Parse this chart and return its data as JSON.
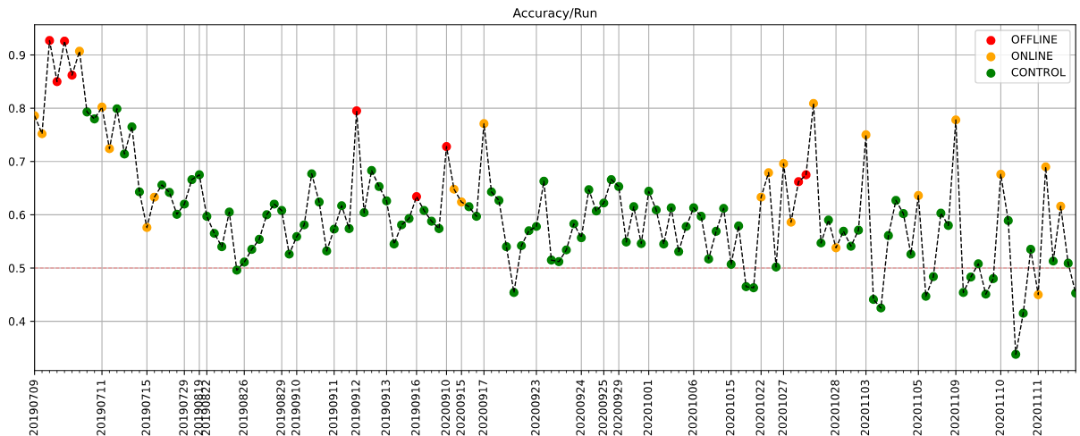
{
  "chart_data": {
    "type": "scatter",
    "title": "Accuracy/Run",
    "ylim": [
      0.3075,
      0.9565
    ],
    "yticks": [
      0.4,
      0.5,
      0.6,
      0.7,
      0.8,
      0.9
    ],
    "categories": [
      "20190709",
      null,
      null,
      null,
      null,
      null,
      null,
      null,
      null,
      "20190711",
      null,
      null,
      null,
      null,
      null,
      "20190715",
      null,
      null,
      null,
      null,
      "20190729",
      null,
      "20190819",
      "20190822",
      null,
      null,
      null,
      null,
      "20190826",
      null,
      null,
      null,
      null,
      "20190829",
      null,
      "20190910",
      null,
      null,
      null,
      null,
      "20190911",
      null,
      null,
      "20190912",
      null,
      null,
      null,
      "20190913",
      null,
      null,
      null,
      "20190916",
      null,
      null,
      null,
      "20200910",
      null,
      "20200915",
      null,
      null,
      "20200917",
      null,
      null,
      null,
      null,
      null,
      null,
      "20200923",
      null,
      null,
      null,
      null,
      null,
      "20200924",
      null,
      null,
      "20200925",
      null,
      "20200929",
      null,
      null,
      null,
      "20201001",
      null,
      null,
      null,
      null,
      null,
      "20201006",
      null,
      null,
      null,
      null,
      "20201015",
      null,
      null,
      null,
      "20201022",
      null,
      null,
      "20201027",
      null,
      null,
      null,
      null,
      null,
      null,
      "20201028",
      null,
      null,
      null,
      "20201103",
      null,
      null,
      null,
      null,
      null,
      null,
      "20201105",
      null,
      null,
      null,
      null,
      "20201109",
      null,
      null,
      null,
      null,
      null,
      "20201110",
      null,
      null,
      null,
      null,
      "20201111",
      null,
      null,
      null,
      null,
      null
    ],
    "grid": true,
    "legend": "top right",
    "ref_lines": [
      {
        "axis": "y",
        "value": 0.5,
        "color": "#f08080",
        "line_style": "dashed"
      }
    ],
    "series": [
      {
        "name": "OFFLINE",
        "color": "#ff0000",
        "values": [
          null,
          null,
          0.927,
          0.85,
          0.926,
          0.862,
          null,
          null,
          null,
          null,
          null,
          null,
          null,
          null,
          null,
          null,
          null,
          null,
          null,
          null,
          null,
          null,
          null,
          null,
          null,
          null,
          null,
          null,
          null,
          null,
          null,
          null,
          null,
          null,
          null,
          null,
          null,
          null,
          null,
          null,
          null,
          null,
          null,
          0.795,
          null,
          null,
          null,
          null,
          null,
          null,
          null,
          0.634,
          null,
          null,
          null,
          0.728,
          null,
          null,
          null,
          null,
          null,
          null,
          null,
          null,
          null,
          null,
          null,
          null,
          null,
          null,
          null,
          null,
          null,
          null,
          null,
          null,
          null,
          null,
          null,
          null,
          null,
          null,
          null,
          null,
          null,
          null,
          null,
          null,
          null,
          null,
          null,
          null,
          null,
          null,
          null,
          null,
          null,
          null,
          null,
          null,
          null,
          null,
          0.662,
          0.675,
          null,
          null,
          null,
          null,
          null,
          null,
          null,
          null,
          null,
          null,
          null,
          null,
          null,
          null,
          null,
          null,
          null,
          null,
          null,
          null,
          null,
          null,
          null,
          null,
          null,
          null,
          null,
          null,
          null,
          null,
          null,
          null,
          null,
          null,
          null,
          null
        ]
      },
      {
        "name": "ONLINE",
        "color": "#ffa500",
        "values": [
          0.786,
          0.752,
          null,
          null,
          null,
          null,
          0.907,
          null,
          null,
          0.802,
          0.724,
          null,
          null,
          null,
          null,
          0.576,
          0.633,
          null,
          null,
          null,
          null,
          null,
          null,
          null,
          null,
          null,
          null,
          null,
          null,
          null,
          null,
          null,
          null,
          null,
          null,
          null,
          null,
          null,
          null,
          null,
          null,
          null,
          null,
          null,
          null,
          null,
          null,
          null,
          null,
          null,
          null,
          null,
          null,
          null,
          null,
          null,
          0.648,
          0.624,
          null,
          null,
          0.771,
          null,
          null,
          null,
          null,
          null,
          null,
          null,
          null,
          null,
          null,
          null,
          null,
          null,
          null,
          null,
          null,
          null,
          null,
          null,
          null,
          null,
          null,
          null,
          null,
          null,
          null,
          null,
          null,
          null,
          null,
          null,
          null,
          null,
          null,
          null,
          null,
          0.633,
          0.679,
          null,
          0.696,
          0.586,
          null,
          null,
          0.809,
          null,
          null,
          0.538,
          null,
          null,
          null,
          0.75,
          null,
          null,
          null,
          null,
          null,
          null,
          0.636,
          null,
          null,
          null,
          null,
          0.778,
          null,
          null,
          null,
          null,
          null,
          0.676,
          null,
          null,
          null,
          null,
          0.45,
          0.69,
          null,
          0.616,
          null,
          null
        ]
      },
      {
        "name": "CONTROL",
        "color": "#008000",
        "values": [
          null,
          null,
          null,
          null,
          null,
          null,
          null,
          0.793,
          0.78,
          null,
          null,
          0.799,
          0.714,
          0.765,
          0.643,
          null,
          null,
          0.656,
          0.642,
          0.601,
          0.62,
          0.666,
          0.675,
          0.597,
          0.565,
          0.54,
          0.605,
          0.496,
          0.511,
          0.535,
          0.554,
          0.6,
          0.62,
          0.608,
          0.526,
          0.559,
          0.581,
          0.677,
          0.624,
          0.532,
          0.573,
          0.617,
          0.574,
          null,
          0.604,
          0.683,
          0.653,
          0.626,
          0.545,
          0.581,
          0.593,
          null,
          0.608,
          0.588,
          0.574,
          null,
          null,
          null,
          0.615,
          0.597,
          null,
          0.643,
          0.627,
          0.54,
          0.454,
          0.542,
          0.57,
          0.578,
          0.663,
          0.515,
          0.512,
          0.534,
          0.583,
          0.557,
          0.647,
          0.607,
          0.622,
          0.666,
          0.653,
          0.549,
          0.615,
          0.546,
          0.644,
          0.609,
          0.545,
          0.613,
          0.531,
          0.578,
          0.613,
          0.597,
          0.517,
          0.569,
          0.612,
          0.507,
          0.579,
          0.465,
          0.463,
          null,
          null,
          0.502,
          null,
          null,
          null,
          null,
          null,
          0.547,
          0.59,
          null,
          0.569,
          0.541,
          0.571,
          null,
          0.441,
          0.425,
          0.561,
          0.627,
          0.602,
          0.526,
          null,
          0.447,
          0.484,
          0.603,
          0.58,
          null,
          0.454,
          0.483,
          0.508,
          0.451,
          0.48,
          null,
          0.589,
          0.338,
          0.415,
          0.535,
          null,
          null,
          0.513,
          null,
          0.509,
          0.453
        ]
      },
      {
        "type": "line",
        "color": "#000000",
        "marker": "none",
        "line_style": "dashed",
        "values": [
          0.786,
          0.752,
          0.927,
          0.85,
          0.926,
          0.862,
          0.907,
          0.793,
          0.78,
          0.802,
          0.724,
          0.799,
          0.714,
          0.765,
          0.643,
          0.576,
          0.633,
          0.656,
          0.642,
          0.601,
          0.62,
          0.666,
          0.675,
          0.597,
          0.565,
          0.54,
          0.605,
          0.496,
          0.511,
          0.535,
          0.554,
          0.6,
          0.62,
          0.608,
          0.526,
          0.559,
          0.581,
          0.677,
          0.624,
          0.532,
          0.573,
          0.617,
          0.574,
          0.795,
          0.604,
          0.683,
          0.653,
          0.626,
          0.545,
          0.581,
          0.593,
          0.634,
          0.608,
          0.588,
          0.574,
          0.728,
          0.648,
          0.624,
          0.615,
          0.597,
          0.771,
          0.643,
          0.627,
          0.54,
          0.454,
          0.542,
          0.57,
          0.578,
          0.663,
          0.515,
          0.512,
          0.534,
          0.583,
          0.557,
          0.647,
          0.607,
          0.622,
          0.666,
          0.653,
          0.549,
          0.615,
          0.546,
          0.644,
          0.609,
          0.545,
          0.613,
          0.531,
          0.578,
          0.613,
          0.597,
          0.517,
          0.569,
          0.612,
          0.507,
          0.579,
          0.465,
          0.463,
          0.633,
          0.679,
          0.502,
          0.696,
          0.586,
          0.662,
          0.675,
          0.809,
          0.547,
          0.59,
          0.538,
          0.569,
          0.541,
          0.571,
          0.75,
          0.441,
          0.425,
          0.561,
          0.627,
          0.602,
          0.526,
          0.636,
          0.447,
          0.484,
          0.603,
          0.58,
          0.778,
          0.454,
          0.483,
          0.508,
          0.451,
          0.48,
          0.676,
          0.589,
          0.338,
          0.415,
          0.535,
          0.45,
          0.69,
          0.513,
          0.616,
          0.509,
          0.453
        ]
      }
    ]
  }
}
